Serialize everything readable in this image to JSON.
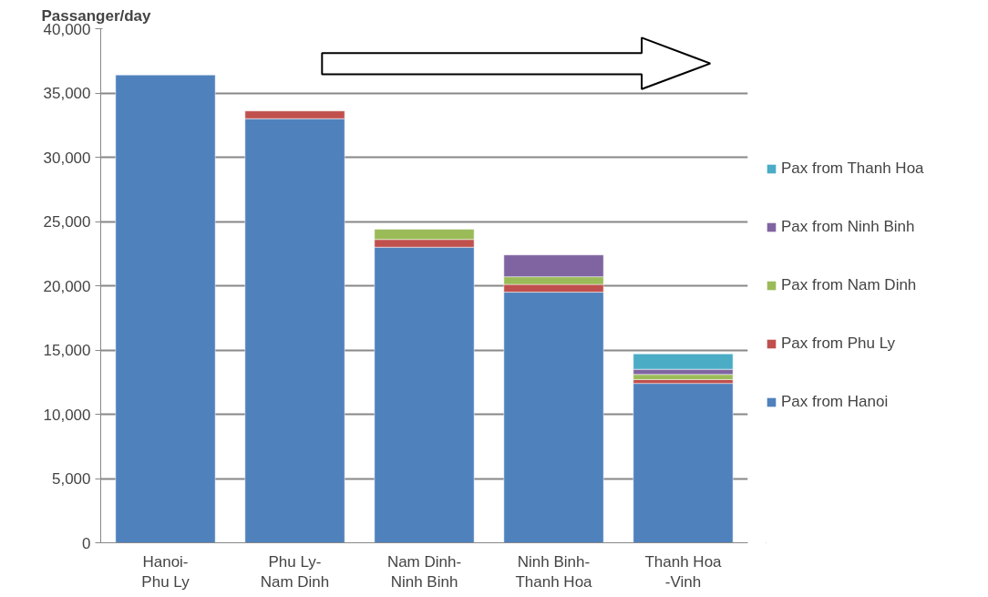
{
  "chart_data": {
    "type": "bar",
    "stacked": true,
    "ylabel": "Passanger/day",
    "categories": [
      "Hanoi-\nPhu Ly",
      "Phu Ly-\nNam Dinh",
      "Nam Dinh-\nNinh Binh",
      "Ninh Binh-\nThanh Hoa",
      "Thanh Hoa\n-Vinh"
    ],
    "series": [
      {
        "name": "Pax from Hanoi",
        "color": "#4f81bd",
        "values": [
          36400,
          33000,
          23000,
          19500,
          12400
        ]
      },
      {
        "name": "Pax from Phu Ly",
        "color": "#c0504d",
        "values": [
          null,
          600,
          600,
          600,
          300
        ]
      },
      {
        "name": "Pax from Nam Dinh",
        "color": "#9bbb59",
        "values": [
          null,
          null,
          800,
          600,
          400
        ]
      },
      {
        "name": "Pax from Ninh Binh",
        "color": "#8064a2",
        "values": [
          null,
          null,
          null,
          1700,
          400
        ]
      },
      {
        "name": "Pax from Thanh Hoa",
        "color": "#4bacc6",
        "values": [
          null,
          null,
          null,
          null,
          1200
        ]
      }
    ],
    "ylim": [
      0,
      40000
    ],
    "yticks": [
      {
        "value": 0,
        "label": "0"
      },
      {
        "value": 5000,
        "label": "5,000"
      },
      {
        "value": 10000,
        "label": "10,000"
      },
      {
        "value": 15000,
        "label": "15,000"
      },
      {
        "value": 20000,
        "label": "20,000"
      },
      {
        "value": 25000,
        "label": "25,000"
      },
      {
        "value": 30000,
        "label": "30,000"
      },
      {
        "value": 35000,
        "label": "35,000"
      },
      {
        "value": 40000,
        "label": "40,000"
      }
    ],
    "grid": "y",
    "legend": "right"
  }
}
